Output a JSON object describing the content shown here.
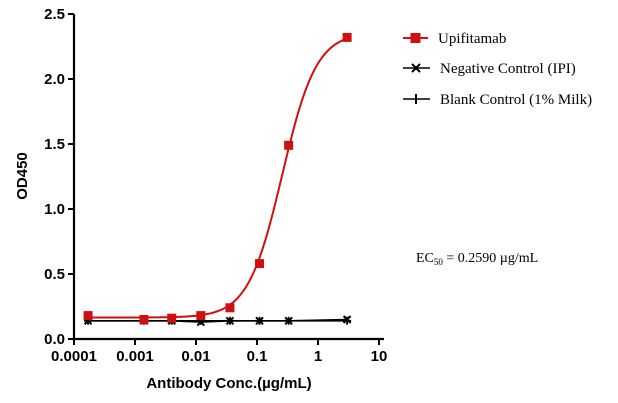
{
  "chart_data": {
    "type": "line",
    "xscale": "log",
    "xlabel": "Antibody Conc.(µg/mL)",
    "ylabel": "OD450",
    "xlim": [
      0.0001,
      10
    ],
    "ylim": [
      0.0,
      2.5
    ],
    "x_tick_labels": [
      "0.0001",
      "0.001",
      "0.01",
      "0.1",
      "1",
      "10"
    ],
    "x_ticks": [
      0.0001,
      0.001,
      0.01,
      0.1,
      1,
      10
    ],
    "y_tick_labels": [
      "0.0",
      "0.5",
      "1.0",
      "1.5",
      "2.0",
      "2.5"
    ],
    "y_ticks": [
      0.0,
      0.5,
      1.0,
      1.5,
      2.0,
      2.5
    ],
    "series": [
      {
        "name": "Upifitamab",
        "marker": "square",
        "color": "#d01010",
        "x": [
          0.00017,
          0.0014,
          0.004,
          0.012,
          0.036,
          0.11,
          0.33,
          3.0
        ],
        "y": [
          0.18,
          0.15,
          0.16,
          0.18,
          0.24,
          0.58,
          1.49,
          2.32
        ],
        "fit": {
          "bottom": 0.165,
          "top": 2.36,
          "ec50": 0.259,
          "hill": 1.55
        }
      },
      {
        "name": "Negative Control (IPI)",
        "marker": "x",
        "color": "#000000",
        "x": [
          0.00017,
          0.0014,
          0.004,
          0.012,
          0.036,
          0.11,
          0.33,
          3.0
        ],
        "y": [
          0.14,
          0.14,
          0.14,
          0.13,
          0.14,
          0.14,
          0.14,
          0.15
        ]
      },
      {
        "name": "Blank Control (1% Milk)",
        "marker": "plus",
        "color": "#000000",
        "x": [
          0.00017,
          0.0014,
          0.004,
          0.012,
          0.036,
          0.11,
          0.33,
          3.0
        ],
        "y": [
          0.14,
          0.14,
          0.14,
          0.14,
          0.14,
          0.14,
          0.14,
          0.14
        ]
      }
    ],
    "legend": {
      "position": "top-right"
    },
    "annotation": {
      "prefix": "EC",
      "subscript": "50",
      "suffix": " = 0.2590 µg/mL"
    }
  }
}
